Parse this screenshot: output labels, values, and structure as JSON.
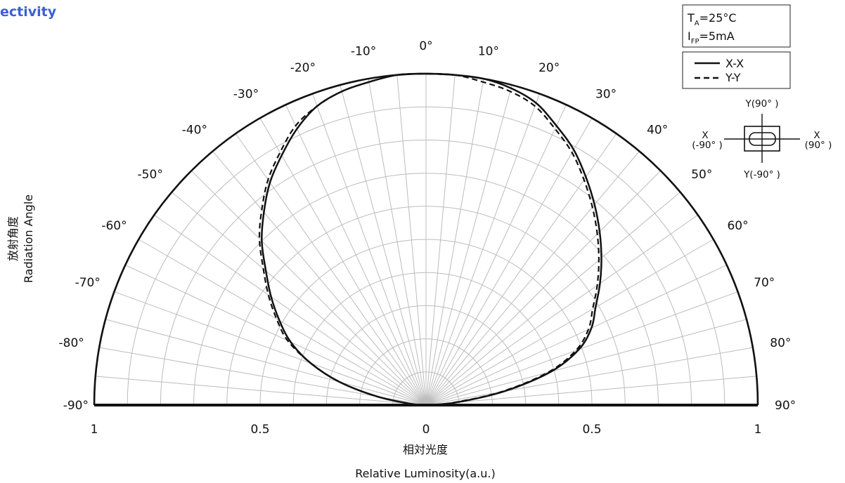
{
  "page": {
    "title": "ectivity"
  },
  "chart_data": {
    "type": "polar",
    "title": "ectivity",
    "angle_axis": {
      "label_cn": "放射角度",
      "label_en": "Radiation Angle",
      "ticks_deg": [
        -90,
        -80,
        -70,
        -60,
        -50,
        -40,
        -30,
        -20,
        -10,
        0,
        10,
        20,
        30,
        40,
        50,
        60,
        70,
        80,
        90
      ],
      "tick_labels": [
        "-90°",
        "-80°",
        "-70°",
        "-60°",
        "-50°",
        "-40°",
        "-30°",
        "-20°",
        "-10°",
        "0°",
        "10°",
        "20°",
        "30°",
        "40°",
        "50°",
        "60°",
        "70°",
        "80°",
        "90°"
      ],
      "range": [
        -90,
        90
      ],
      "grid_step_deg": 5
    },
    "radial_axis": {
      "label_cn": "相対光度",
      "label_en": "Relative Luminosity(a.u.)",
      "ticks": [
        1,
        0.5,
        0,
        0.5,
        1
      ],
      "tick_labels": [
        "1",
        "0.5",
        "0",
        "0.5",
        "1"
      ],
      "range": [
        0,
        1
      ],
      "grid_step": 0.1
    },
    "grid": true,
    "conditions": {
      "ta": {
        "main": "T",
        "sub": "A",
        "rest": "=25°C"
      },
      "ifp": {
        "main": "I",
        "sub": "FP",
        "rest": "=5mA"
      }
    },
    "legend_placement": "top-right",
    "series": [
      {
        "name": "X-X",
        "style": "solid",
        "angle_deg": [
          -90,
          -85,
          -80,
          -75,
          -70,
          -65,
          -60,
          -55,
          -50,
          -45,
          -40,
          -35,
          -30,
          -25,
          -20,
          -15,
          -10,
          -5,
          0,
          5,
          10,
          15,
          20,
          25,
          30,
          35,
          40,
          45,
          50,
          55,
          60,
          65,
          70,
          75,
          80,
          85,
          90
        ],
        "values": [
          0,
          0.05,
          0.15,
          0.27,
          0.37,
          0.45,
          0.51,
          0.57,
          0.63,
          0.7,
          0.76,
          0.82,
          0.87,
          0.92,
          0.96,
          0.98,
          0.99,
          1.0,
          1.0,
          1.0,
          1.0,
          0.99,
          0.97,
          0.93,
          0.89,
          0.84,
          0.79,
          0.74,
          0.69,
          0.64,
          0.59,
          0.55,
          0.49,
          0.39,
          0.24,
          0.09,
          0
        ]
      },
      {
        "name": "Y-Y",
        "style": "dashed",
        "angle_deg": [
          -90,
          -85,
          -80,
          -75,
          -70,
          -65,
          -60,
          -55,
          -50,
          -45,
          -40,
          -35,
          -30,
          -25,
          -20,
          -15,
          -10,
          -5,
          0,
          5,
          10,
          15,
          20,
          25,
          30,
          35,
          40,
          45,
          50,
          55,
          60,
          65,
          70,
          75,
          80,
          85,
          90
        ],
        "values": [
          0,
          0.05,
          0.15,
          0.27,
          0.37,
          0.46,
          0.52,
          0.58,
          0.64,
          0.71,
          0.77,
          0.83,
          0.88,
          0.93,
          0.96,
          0.98,
          0.99,
          1.0,
          1.0,
          1.0,
          0.99,
          0.98,
          0.96,
          0.92,
          0.88,
          0.83,
          0.78,
          0.73,
          0.68,
          0.63,
          0.58,
          0.54,
          0.48,
          0.38,
          0.23,
          0.08,
          0
        ]
      }
    ],
    "orientation_diagram": {
      "top": "Y(90°  )",
      "bottom": "Y(-90°  )",
      "left": [
        "X",
        "(-90°  )"
      ],
      "right": [
        "X",
        "(90°  )"
      ]
    }
  }
}
